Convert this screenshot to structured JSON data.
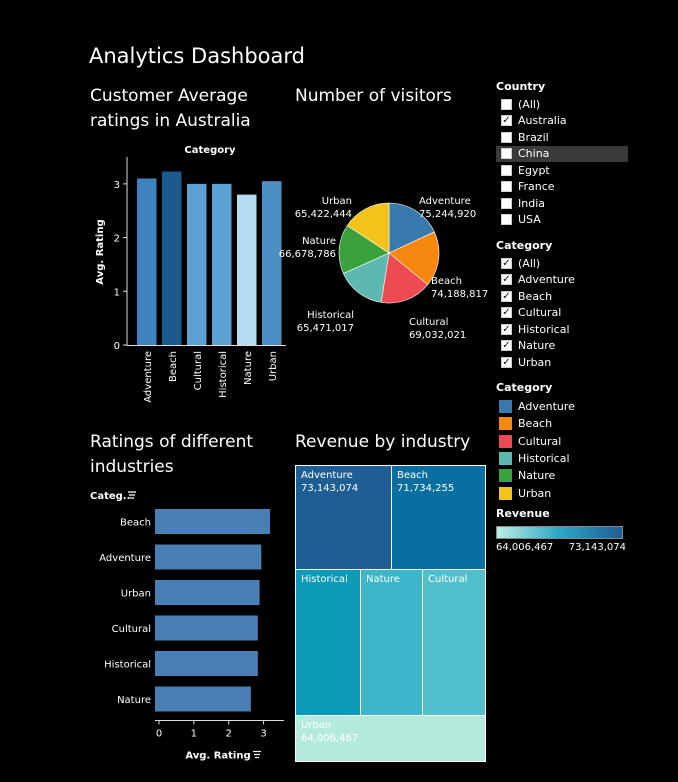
{
  "dashboard_title": "Analytics Dashboard",
  "titles": {
    "australia": "Customer Average ratings in Australia",
    "visitors": "Number of visitors",
    "industries": "Ratings of different industries",
    "revenue": "Revenue by industry"
  },
  "filters": {
    "country_title": "Country",
    "countries": [
      {
        "label": "(All)",
        "checked": false
      },
      {
        "label": "Australia",
        "checked": true
      },
      {
        "label": "Brazil",
        "checked": false
      },
      {
        "label": "China",
        "checked": false,
        "highlight": true
      },
      {
        "label": "Egypt",
        "checked": false
      },
      {
        "label": "France",
        "checked": false
      },
      {
        "label": "India",
        "checked": false
      },
      {
        "label": "USA",
        "checked": false
      }
    ],
    "category_title": "Category",
    "categories": [
      {
        "label": "(All)",
        "checked": true
      },
      {
        "label": "Adventure",
        "checked": true
      },
      {
        "label": "Beach",
        "checked": true
      },
      {
        "label": "Cultural",
        "checked": true
      },
      {
        "label": "Historical",
        "checked": true
      },
      {
        "label": "Nature",
        "checked": true
      },
      {
        "label": "Urban",
        "checked": true
      }
    ]
  },
  "legend": {
    "title": "Category",
    "items": [
      {
        "label": "Adventure",
        "color": "#3A78B0"
      },
      {
        "label": "Beach",
        "color": "#F6870F"
      },
      {
        "label": "Cultural",
        "color": "#EE4A51"
      },
      {
        "label": "Historical",
        "color": "#5EB8B2"
      },
      {
        "label": "Nature",
        "color": "#3BA23B"
      },
      {
        "label": "Urban",
        "color": "#F2C31B"
      }
    ]
  },
  "revenue_legend": {
    "title": "Revenue",
    "min": "64,006,467",
    "max": "73,143,074",
    "color_min": "#BDEEE3",
    "color_max": "#1E5E94"
  },
  "chart_data": [
    {
      "type": "bar",
      "title": "Customer Average ratings in Australia",
      "header": "Category",
      "categories": [
        "Adventure",
        "Beach",
        "Cultural",
        "Historical",
        "Nature",
        "Urban"
      ],
      "values": [
        3.1,
        3.23,
        3.0,
        3.0,
        2.8,
        3.05
      ],
      "colors": [
        "#3F83BC",
        "#1C5A8E",
        "#5AA0D2",
        "#5AA0D2",
        "#B4DDF3",
        "#4C8FC5"
      ],
      "ylabel": "Avg. Rating",
      "ylim": [
        0,
        3.5
      ],
      "yticks": [
        0,
        1,
        2,
        3
      ]
    },
    {
      "type": "pie",
      "title": "Number of visitors",
      "slices": [
        {
          "label": "Adventure",
          "value": 75244920,
          "display": "75,244,920",
          "color": "#3A78B0"
        },
        {
          "label": "Beach",
          "value": 74188817,
          "display": "74,188,817",
          "color": "#F6870F"
        },
        {
          "label": "Cultural",
          "value": 69032021,
          "display": "69,032,021",
          "color": "#EE4A51"
        },
        {
          "label": "Historical",
          "value": 65471017,
          "display": "65,471,017",
          "color": "#5EB8B2"
        },
        {
          "label": "Nature",
          "value": 66678786,
          "display": "66,678,786",
          "color": "#3BA23B"
        },
        {
          "label": "Urban",
          "value": 65422444,
          "display": "65,422,444",
          "color": "#F2C31B"
        }
      ]
    },
    {
      "type": "bar",
      "orientation": "horizontal",
      "title": "Ratings of different industries",
      "header": "Categ..",
      "categories": [
        "Beach",
        "Adventure",
        "Urban",
        "Cultural",
        "Historical",
        "Nature"
      ],
      "values": [
        3.3,
        3.05,
        3.0,
        2.95,
        2.95,
        2.75
      ],
      "color": "#4A7FB5",
      "xlabel": "Avg. Rating",
      "xlim": [
        0,
        3.5
      ],
      "xticks": [
        0,
        1,
        2,
        3
      ]
    },
    {
      "type": "treemap",
      "title": "Revenue by industry",
      "items": [
        {
          "label": "Adventure",
          "value": 73143074,
          "display": "73,143,074",
          "color": "#1E5E94"
        },
        {
          "label": "Beach",
          "value": 71734255,
          "display": "71,734,255",
          "color": "#0B6EA1"
        },
        {
          "label": "Historical",
          "color": "#0C9AB6"
        },
        {
          "label": "Nature",
          "color": "#3EB5C8"
        },
        {
          "label": "Cultural",
          "color": "#52C0CC"
        },
        {
          "label": "Urban",
          "value": 64006467,
          "display": "64,006,467",
          "color": "#B4E9DE"
        }
      ]
    }
  ]
}
